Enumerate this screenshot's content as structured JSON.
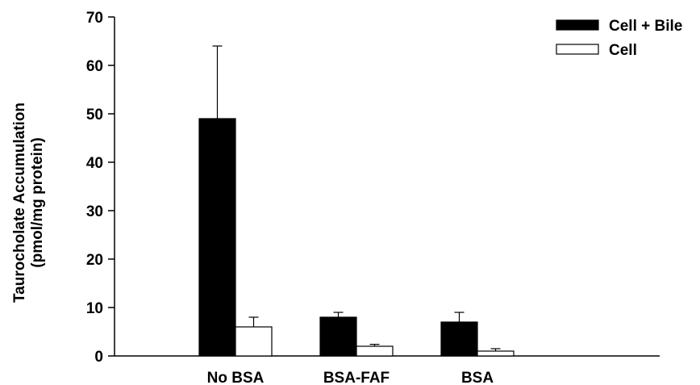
{
  "chart_data": {
    "type": "bar",
    "categories": [
      "No BSA",
      "BSA-FAF",
      "BSA"
    ],
    "series": [
      {
        "name": "Cell + Bile",
        "values": [
          49,
          8,
          7
        ],
        "errors": [
          15,
          1,
          2
        ],
        "color": "#000000"
      },
      {
        "name": "Cell",
        "values": [
          6,
          2,
          1
        ],
        "errors": [
          2,
          0.4,
          0.5
        ],
        "color": "#ffffff"
      }
    ],
    "ylabel_line1": "Taurocholate Accumulation",
    "ylabel_line2": "(pmol/mg protein)",
    "xlabel": "",
    "ylim": [
      0,
      70
    ],
    "yticks": [
      0,
      10,
      20,
      30,
      40,
      50,
      60,
      70
    ],
    "ytick_labels": [
      "0",
      "10",
      "20",
      "30",
      "40",
      "50",
      "60",
      "70"
    ],
    "grid": false,
    "legend": "top-right"
  }
}
